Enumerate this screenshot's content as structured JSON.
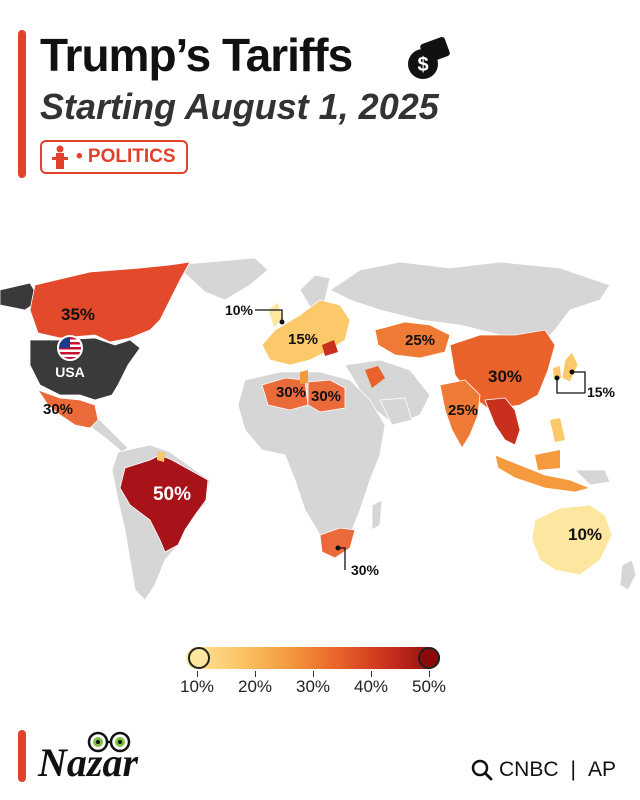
{
  "header": {
    "title": "Trump’s Tariffs",
    "subtitle": "Starting August 1, 2025",
    "badge": "• POLITICS"
  },
  "map": {
    "labels": {
      "canada": "35%",
      "usa": "USA",
      "mexico": "30%",
      "brazil": "50%",
      "eu_uk": "10%",
      "europe": "15%",
      "algeria": "30%",
      "libya": "30%",
      "kazakhstan": "25%",
      "china": "30%",
      "india": "25%",
      "japan": "15%",
      "south_africa": "30%",
      "australia": "10%"
    }
  },
  "legend": {
    "ticks": [
      "10%",
      "20%",
      "30%",
      "40%",
      "50%"
    ],
    "colors": [
      "#fde7a0",
      "#fbc86a",
      "#f59b3e",
      "#e9622a",
      "#c8301d",
      "#8c0a0a"
    ]
  },
  "footer": {
    "brand": "Nazar",
    "source1": "CNBC",
    "separator": "|",
    "source2": "AP"
  }
}
